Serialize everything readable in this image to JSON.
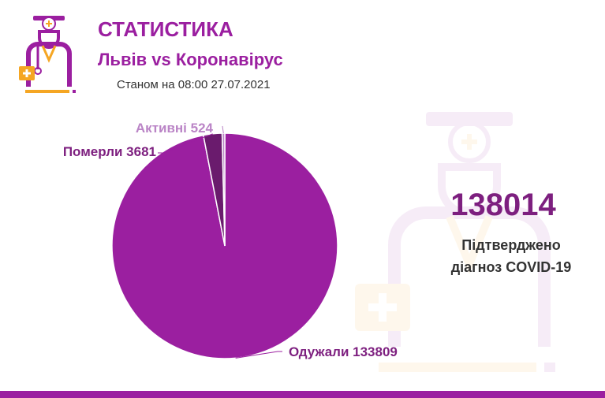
{
  "header": {
    "title": "СТАТИСТИКА",
    "subtitle": "Львів vs Коронавірус",
    "date": "Станом на 08:00 27.07.2021"
  },
  "summary": {
    "total": "138014",
    "caption_line1": "Підтверджено",
    "caption_line2": "діагноз COVID-19"
  },
  "colors": {
    "brand": "#9b1fa0",
    "deaths": "#6a1b6d",
    "active": "#ba84c6",
    "accent_orange": "#f5a623"
  },
  "icons": [
    "doctor-logo-icon",
    "doctor-watermark-icon"
  ],
  "chart_data": {
    "type": "pie",
    "slices": [
      {
        "label": "Одужали 133809",
        "name": "Одужали",
        "value": 133809,
        "color": "#9b1fa0"
      },
      {
        "label": "Померли 3681",
        "name": "Померли",
        "value": 3681,
        "color": "#6a1b6d"
      },
      {
        "label": "Активні 524",
        "name": "Активні",
        "value": 524,
        "color": "#ba84c6"
      }
    ]
  }
}
